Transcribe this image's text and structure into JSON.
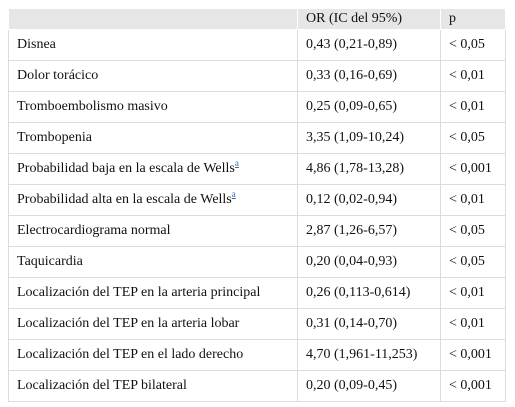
{
  "table": {
    "header": [
      "",
      "OR (IC del 95%)",
      "p"
    ],
    "rows": [
      {
        "label": "Disnea",
        "or": "0,43 (0,21-0,89)",
        "p": "< 0,05"
      },
      {
        "label": "Dolor torácico",
        "or": "0,33 (0,16-0,69)",
        "p": "< 0,01"
      },
      {
        "label": "Tromboembolismo masivo",
        "or": "0,25 (0,09-0,65)",
        "p": "< 0,01"
      },
      {
        "label": "Trombopenia",
        "or": "3,35 (1,09-10,24)",
        "p": "< 0,05"
      },
      {
        "label": "Probabilidad baja en la escala de Wells",
        "sup": "a",
        "or": "4,86 (1,78-13,28)",
        "p": "< 0,001"
      },
      {
        "label": "Probabilidad alta en la escala de Wells",
        "sup": "a",
        "or": "0,12 (0,02-0,94)",
        "p": "< 0,01"
      },
      {
        "label": "Electrocardiograma normal",
        "or": "2,87 (1,26-6,57)",
        "p": "< 0,05"
      },
      {
        "label": "Taquicardia",
        "or": "0,20 (0,04-0,93)",
        "p": "< 0,05"
      },
      {
        "label": "Localización del TEP en la arteria principal",
        "or": "0,26 (0,113-0,614)",
        "p": "< 0,01"
      },
      {
        "label": "Localización del TEP en la arteria lobar",
        "or": "0,31 (0,14-0,70)",
        "p": "< 0,01"
      },
      {
        "label": "Localización del TEP en el lado derecho",
        "or": "4,70 (1,961-11,253)",
        "p": "< 0,001"
      },
      {
        "label": "Localización del TEP bilateral",
        "or": "0,20 (0,09-0,45)",
        "p": "< 0,001"
      }
    ]
  }
}
